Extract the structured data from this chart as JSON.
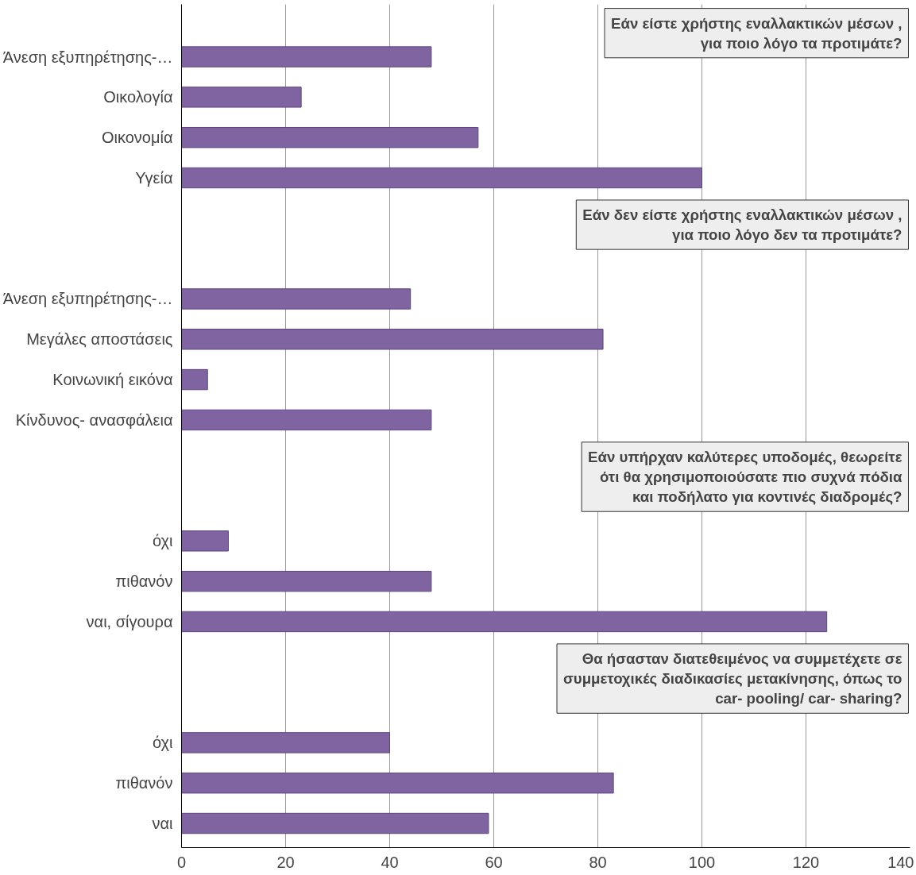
{
  "chart_data": {
    "type": "bar",
    "orientation": "horizontal",
    "categories": [
      "Άνεση εξυπηρέτησης-…",
      "Οικολογία",
      "Οικονομία",
      "Υγεία",
      null,
      null,
      "Άνεση εξυπηρέτησης-…",
      "Μεγάλες αποστάσεις",
      "Κοινωνική εικόνα",
      "Κίνδυνος- ανασφάλεια",
      null,
      null,
      "όχι",
      "πιθανόν",
      "ναι, σίγουρα",
      null,
      null,
      "όχι",
      "πιθανόν",
      "ναι"
    ],
    "values": [
      48,
      23,
      57,
      100,
      null,
      null,
      44,
      81,
      5,
      48,
      null,
      null,
      9,
      48,
      124,
      null,
      null,
      40,
      83,
      59
    ],
    "color": "#8064a2",
    "xlim": [
      0,
      140
    ],
    "xticks": [
      0,
      20,
      40,
      60,
      80,
      100,
      120,
      140
    ],
    "grid": "x",
    "annotations": [
      "Εάν είστε χρήστης εναλλακτικών μέσων ,\nγια ποιο λόγο τα προτιμάτε?",
      "Εάν δεν είστε χρήστης εναλλακτικών μέσων ,\nγια ποιο λόγο δεν τα προτιμάτε?",
      "Εάν υπήρχαν καλύτερες υποδομές, θεωρείτε\nότι θα χρησιμοποιούσατε πιο συχνά πόδια\nκαι ποδήλατο για κοντινές διαδρομές?",
      "Θα ήσασταν διατεθειμένος να συμμετέχετε σε\nσυμμετοχικές διαδικασίες μετακίνησης, όπως το\ncar- pooling/ car- sharing?"
    ]
  }
}
